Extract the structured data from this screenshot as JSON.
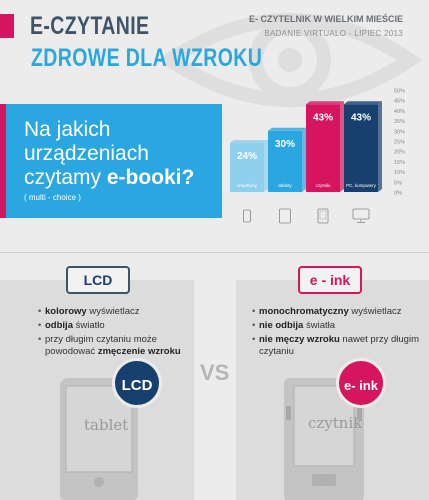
{
  "header": {
    "title_line1": "E-CZYTANIE",
    "title_line2": "ZDROWE DLA WZROKU",
    "source_line1": "E- CZYTELNIK W WIELKIM MIEŚCIE",
    "source_line2": "BADANIE VIRTUALO - LIPIEC 2013"
  },
  "question": {
    "text_pre": "Na jakich urządzeniach czytamy ",
    "text_bold": "e-booki?",
    "sub": "( multi - choice )"
  },
  "chart_data": {
    "type": "bar",
    "categories": [
      "smartfony",
      "tablety",
      "czytniki",
      "PC, komputery"
    ],
    "values": [
      24,
      30,
      43,
      43
    ],
    "value_labels": [
      "24%",
      "30%",
      "43%",
      "43%"
    ],
    "ylim": [
      0,
      50
    ],
    "yticks": [
      "0%",
      "5%",
      "10%",
      "15%",
      "20%",
      "25%",
      "30%",
      "35%",
      "40%",
      "45%",
      "50%"
    ],
    "grid": false,
    "colors": [
      "#8ed0ee",
      "#2aa7e0",
      "#d6155f",
      "#17406e"
    ],
    "icons": [
      "smartphone-icon",
      "tablet-icon",
      "ereader-icon",
      "monitor-icon"
    ]
  },
  "comparison": {
    "vs": "VS",
    "lcd": {
      "label": "LCD",
      "badge": "LCD",
      "device": "tablet",
      "features": [
        {
          "bold": "kolorowy",
          "rest": " wyświetlacz"
        },
        {
          "bold": "odbija",
          "rest": " światło"
        },
        {
          "bold": "",
          "rest": "przy długim czytaniu może powodować ",
          "bold2": "zmęczenie wzroku"
        }
      ]
    },
    "eink": {
      "label": "e - ink",
      "badge": "e- ink",
      "device": "czytnik",
      "features": [
        {
          "bold": "monochromatyczny",
          "rest": " wyświetlacz"
        },
        {
          "bold": "nie odbija",
          "rest": " światła"
        },
        {
          "bold": "nie męczy wzroku",
          "rest": " nawet przy długim czytaniu"
        }
      ]
    }
  }
}
